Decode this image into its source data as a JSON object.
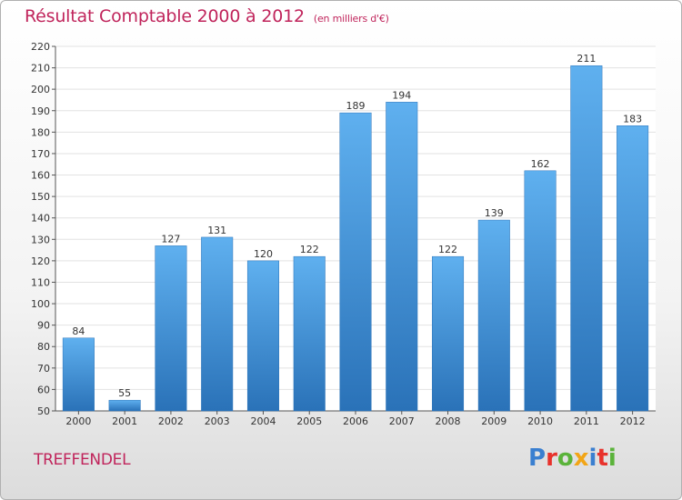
{
  "chart_data": {
    "type": "bar",
    "title": "Résultat Comptable 2000 à 2012",
    "subtitle": "(en milliers d'€)",
    "categories": [
      "2000",
      "2001",
      "2002",
      "2003",
      "2004",
      "2005",
      "2006",
      "2007",
      "2008",
      "2009",
      "2010",
      "2011",
      "2012"
    ],
    "values": [
      84,
      55,
      127,
      131,
      120,
      122,
      189,
      194,
      122,
      139,
      162,
      211,
      183
    ],
    "ylim": [
      50,
      220
    ],
    "yticks": [
      50,
      60,
      70,
      80,
      90,
      100,
      110,
      120,
      130,
      140,
      150,
      160,
      170,
      180,
      190,
      200,
      210,
      220
    ],
    "grid": true,
    "bar_color": "#3d8fd6",
    "bar_color_light": "#5fb0ef",
    "bar_color_dark": "#2a72b8"
  },
  "footer": {
    "town": "TREFFENDEL",
    "brand_letters": [
      {
        "ch": "P",
        "color": "#3a7fd0"
      },
      {
        "ch": "r",
        "color": "#e8322c"
      },
      {
        "ch": "o",
        "color": "#5ab33a"
      },
      {
        "ch": "x",
        "color": "#f2a516"
      },
      {
        "ch": "i",
        "color": "#3a7fd0"
      },
      {
        "ch": "t",
        "color": "#e8322c"
      },
      {
        "ch": "i",
        "color": "#5ab33a"
      }
    ]
  },
  "colors": {
    "title": "#c0245b",
    "grid": "#e2e2e2",
    "axis": "#555555"
  }
}
